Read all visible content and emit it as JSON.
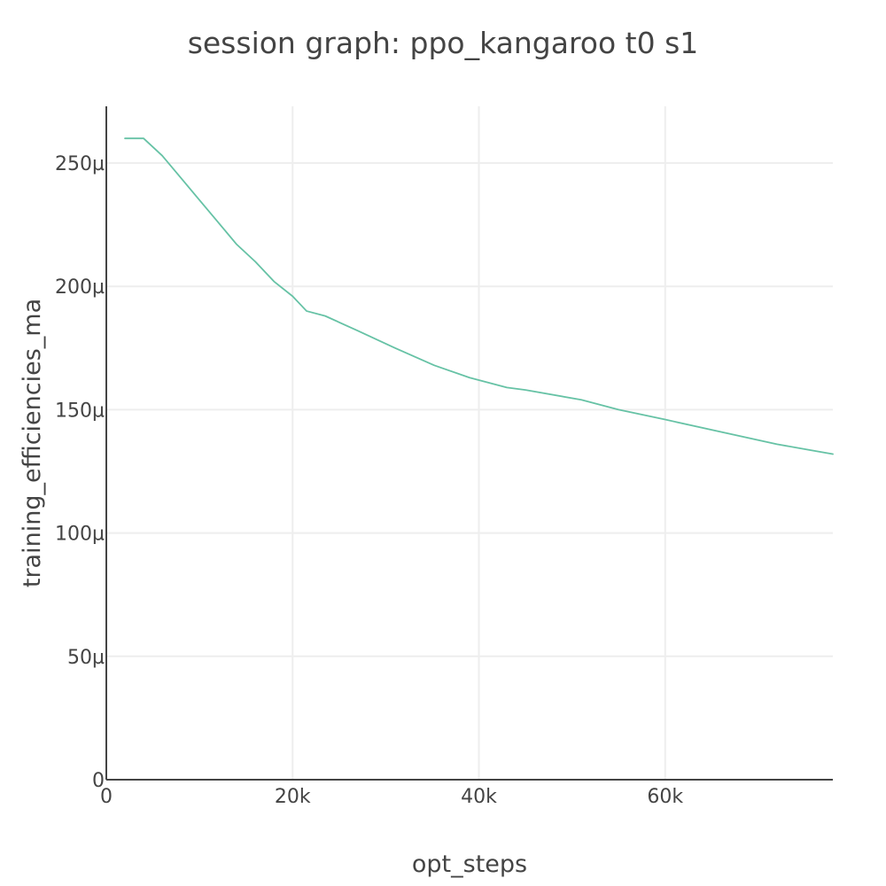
{
  "chart_data": {
    "type": "line",
    "title": "session graph: ppo_kangaroo t0 s1",
    "xlabel": "opt_steps",
    "ylabel": "training_efficiencies_ma",
    "xlim": [
      0,
      78000
    ],
    "ylim": [
      0,
      0.000273
    ],
    "x_ticks": [
      {
        "value": 0,
        "label": "0"
      },
      {
        "value": 20000,
        "label": "20k"
      },
      {
        "value": 40000,
        "label": "40k"
      },
      {
        "value": 60000,
        "label": "60k"
      }
    ],
    "y_ticks": [
      {
        "value": 0,
        "label": "0"
      },
      {
        "value": 5e-05,
        "label": "50µ"
      },
      {
        "value": 0.0001,
        "label": "100µ"
      },
      {
        "value": 0.00015,
        "label": "150µ"
      },
      {
        "value": 0.0002,
        "label": "200µ"
      },
      {
        "value": 0.00025,
        "label": "250µ"
      }
    ],
    "grid": true,
    "legend": "none",
    "series": [
      {
        "color": "#66c2a5",
        "x": [
          2000,
          4000,
          6000,
          8000,
          10000,
          12000,
          14000,
          16000,
          18000,
          20000,
          21500,
          23500,
          27000,
          31000,
          35200,
          39000,
          43000,
          45000,
          51000,
          55000,
          60000,
          66000,
          72000,
          78000
        ],
        "y": [
          0.00026,
          0.00026,
          0.000253,
          0.000244,
          0.000235,
          0.000226,
          0.000217,
          0.00021,
          0.000202,
          0.000196,
          0.00019,
          0.000188,
          0.000182,
          0.000175,
          0.000168,
          0.000163,
          0.000159,
          0.000158,
          0.000154,
          0.00015,
          0.000146,
          0.000141,
          0.000136,
          0.000132
        ]
      }
    ]
  }
}
